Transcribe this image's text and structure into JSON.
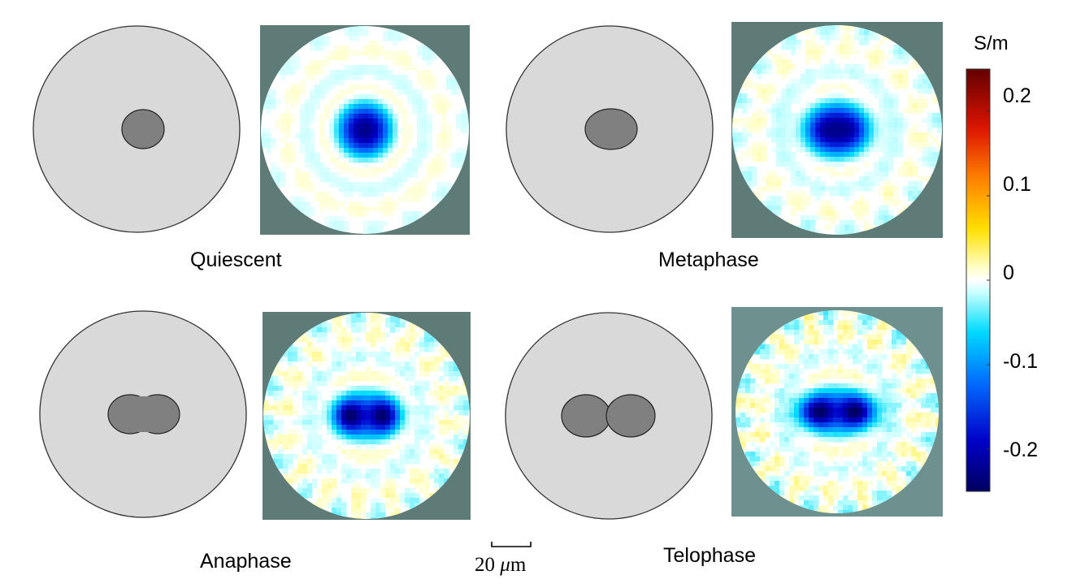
{
  "panels": [
    {
      "label": "Quiescent",
      "shape": "single",
      "spread": 1.0,
      "cross": 0.25
    },
    {
      "label": "Metaphase",
      "shape": "oval",
      "spread": 1.0,
      "cross": 0.55
    },
    {
      "label": "Anaphase",
      "shape": "double",
      "spread": 1.0,
      "cross": 0.85
    },
    {
      "label": "Telophase",
      "shape": "split",
      "spread": 1.0,
      "cross": 1.0
    }
  ],
  "colorbar": {
    "unit": "S/m",
    "ticks": [
      "0.2",
      "0.1",
      "0",
      "-0.1",
      "-0.2"
    ],
    "tick_values": [
      0.2,
      0.1,
      0,
      -0.1,
      -0.2
    ],
    "range": [
      -0.25,
      0.25
    ]
  },
  "scale_bar": {
    "number": "20",
    "mu": "μ",
    "unit_suffix": "m"
  },
  "colors": {
    "cell_fill": "#d9d9d9",
    "nucleus_fill": "#808080",
    "outline": "#333333",
    "map_background_dark": "#5e7b78",
    "map_background_light": "#6e9190"
  }
}
